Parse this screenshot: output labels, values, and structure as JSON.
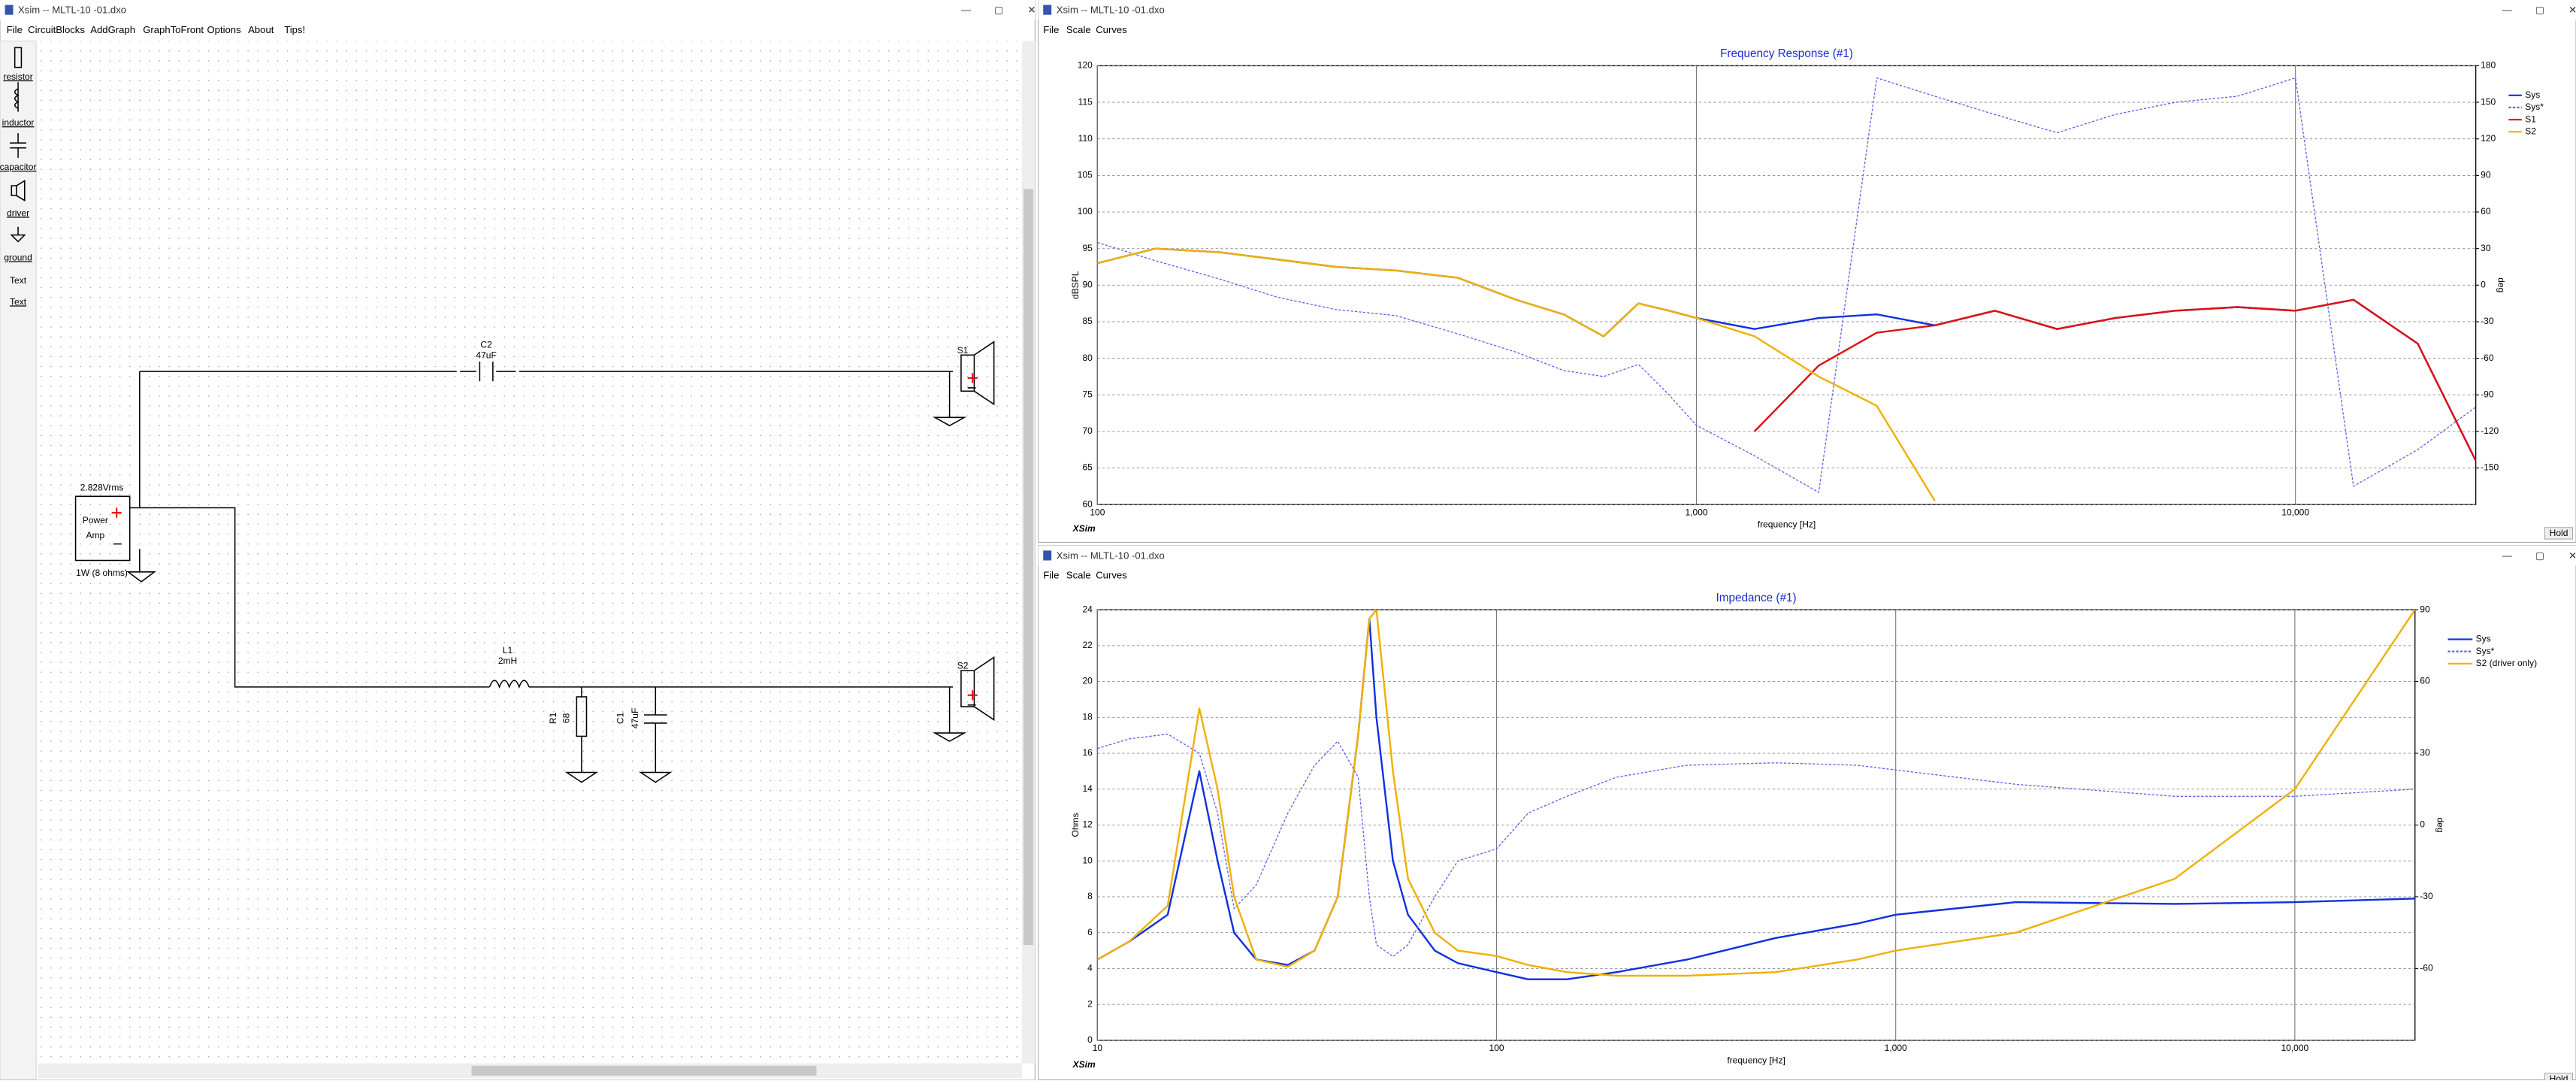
{
  "schematic_window": {
    "title": "Xsim -- MLTL-10 -01.dxo",
    "menu": [
      "File",
      "CircuitBlocks",
      "AddGraph",
      "GraphToFront",
      "Options",
      "About",
      "Tips!"
    ],
    "toolbox": [
      "resistor",
      "inductor",
      "capacitor",
      "driver",
      "ground",
      "Text",
      "Text"
    ],
    "labels": [
      "C2",
      "47uF",
      "S1",
      "2.828Vrms",
      "Power",
      "Amp",
      "1W (8 ohms)",
      "L1",
      "2mH",
      "R1",
      "68",
      "C1",
      "47uF",
      "S2"
    ]
  },
  "chart_windows": [
    {
      "title": "Xsim -- MLTL-10 -01.dxo",
      "menu": [
        "File",
        "Scale",
        "Curves"
      ],
      "logo": "XSim",
      "button": "Hold"
    },
    {
      "title": "Xsim -- MLTL-10 -01.dxo",
      "menu": [
        "File",
        "Scale",
        "Curves"
      ],
      "logo": "XSim",
      "button": "Hold"
    }
  ],
  "chart_data": [
    {
      "type": "line",
      "title": "Frequency Response (#1)",
      "xlabel": "frequency [Hz]",
      "ylabel": "dBSPL",
      "y2label": "deg",
      "xscale": "log",
      "grid": true,
      "legend": "upper right",
      "x": [
        100,
        125,
        160,
        200,
        250,
        315,
        400,
        500,
        600,
        700,
        800,
        900,
        1000,
        1250,
        1600,
        2000,
        2500,
        3150,
        4000,
        5000,
        6300,
        8000,
        10000,
        12500,
        16000,
        20000
      ],
      "xlim": [
        100,
        20000
      ],
      "xticks": [
        100,
        {
          "value": 1000,
          "label": "1,000"
        },
        {
          "value": 10000,
          "label": "10,000"
        }
      ],
      "ylim": [
        60,
        120
      ],
      "yticks": [
        60,
        65,
        70,
        75,
        80,
        85,
        90,
        95,
        100,
        105,
        110,
        115,
        120
      ],
      "y2lim": [
        -180,
        180
      ],
      "y2ticks": [
        -150,
        -120,
        -90,
        -60,
        -30,
        0,
        30,
        60,
        90,
        120,
        150,
        180
      ],
      "series": [
        {
          "name": "Sys",
          "color": "#1030e0",
          "values": [
            93,
            95,
            94.5,
            93.5,
            92.5,
            92,
            91,
            88,
            86,
            83,
            87.5,
            86.5,
            85.5,
            84,
            85.5,
            86,
            84.5,
            86.5,
            84,
            85.5,
            86.5,
            87,
            86.5,
            88,
            82,
            66
          ]
        },
        {
          "name": "Sys*",
          "color": "#6060ee",
          "dash": true,
          "axis": "y2",
          "values": [
            35,
            20,
            5,
            -10,
            -20,
            -25,
            -40,
            -55,
            -70,
            -75,
            -65,
            -90,
            -115,
            -140,
            -170,
            170,
            155,
            140,
            125,
            140,
            150,
            155,
            170,
            -165,
            -135,
            -100
          ]
        },
        {
          "name": "S1",
          "color": "#e01010",
          "values": [
            null,
            null,
            null,
            null,
            null,
            null,
            null,
            null,
            null,
            null,
            null,
            null,
            null,
            70,
            79,
            83.5,
            84.5,
            86.5,
            84,
            85.5,
            86.5,
            87,
            86.5,
            88,
            82,
            66
          ]
        },
        {
          "name": "S2",
          "color": "#f0b000",
          "values": [
            93,
            95,
            94.5,
            93.5,
            92.5,
            92,
            91,
            88,
            86,
            83,
            87.5,
            86.5,
            85.5,
            83,
            77.5,
            73.5,
            60.5,
            null,
            null,
            null,
            null,
            null,
            null,
            null,
            null,
            null
          ]
        }
      ]
    },
    {
      "type": "line",
      "title": "Impedance (#1)",
      "xlabel": "frequency [Hz]",
      "ylabel": "Ohms",
      "y2label": "deg",
      "xscale": "log",
      "grid": true,
      "legend": "upper right",
      "x": [
        10,
        12,
        15,
        18,
        20,
        22,
        25,
        30,
        35,
        40,
        45,
        48,
        50,
        55,
        60,
        70,
        80,
        100,
        120,
        150,
        200,
        300,
        500,
        800,
        1000,
        2000,
        5000,
        10000,
        20000
      ],
      "xlim": [
        10,
        20000
      ],
      "xticks": [
        10,
        100,
        {
          "value": 1000,
          "label": "1,000"
        },
        {
          "value": 10000,
          "label": "10,000"
        }
      ],
      "ylim": [
        0,
        24
      ],
      "yticks": [
        0,
        2,
        4,
        6,
        8,
        10,
        12,
        14,
        16,
        18,
        20,
        22,
        24
      ],
      "y2lim": [
        -90,
        90
      ],
      "y2ticks": [
        -60,
        -30,
        0,
        30,
        60,
        90
      ],
      "series": [
        {
          "name": "Sys",
          "color": "#1030e0",
          "values": [
            4.5,
            5.5,
            7,
            15,
            10,
            6,
            4.5,
            4.2,
            5,
            8,
            17,
            23.5,
            18,
            10,
            7,
            5,
            4.3,
            3.8,
            3.4,
            3.4,
            3.8,
            4.5,
            5.7,
            6.5,
            7,
            7.7,
            7.6,
            7.7,
            7.9
          ]
        },
        {
          "name": "Sys*",
          "color": "#6060ee",
          "dash": true,
          "axis": "y2",
          "values": [
            32,
            36,
            38,
            30,
            5,
            -35,
            -25,
            5,
            25,
            35,
            20,
            -30,
            -50,
            -55,
            -50,
            -30,
            -15,
            -10,
            5,
            12,
            20,
            25,
            26,
            25,
            23,
            17,
            12,
            12,
            15
          ]
        },
        {
          "name": "S2 (driver only)",
          "color": "#f0b000",
          "values": [
            4.5,
            5.5,
            7.5,
            18.5,
            14,
            8,
            4.5,
            4.1,
            5,
            8,
            17,
            23.5,
            24,
            15,
            9,
            6,
            5,
            4.7,
            4.2,
            3.8,
            3.6,
            3.6,
            3.8,
            4.5,
            5,
            6,
            9,
            14,
            24
          ]
        }
      ]
    }
  ]
}
